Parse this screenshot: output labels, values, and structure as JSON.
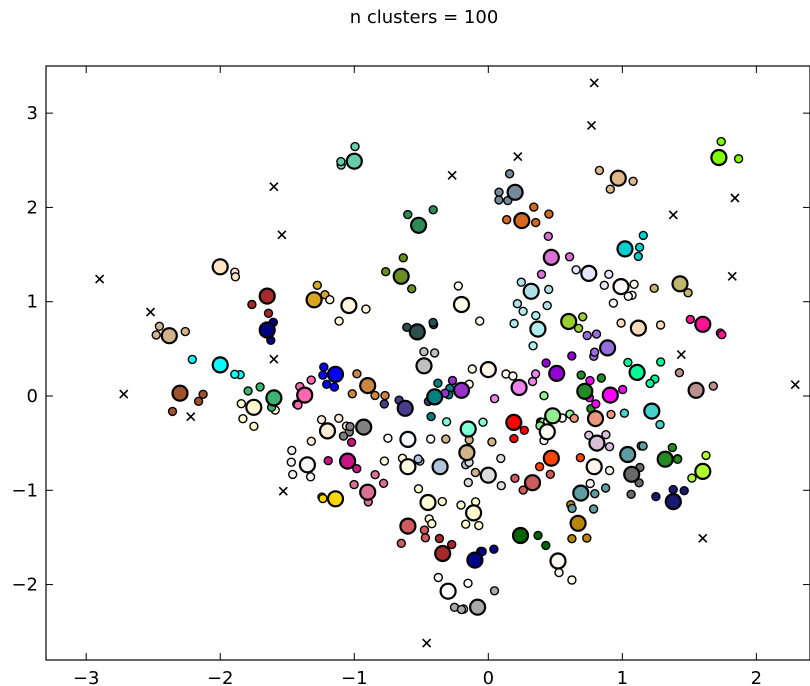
{
  "chart_data": {
    "type": "scatter",
    "title": "n clusters = 100",
    "xlabel": "",
    "ylabel": "",
    "xlim": [
      -3.3,
      2.4
    ],
    "ylim": [
      -2.8,
      3.5
    ],
    "xticks": [
      -3,
      -2,
      -1,
      0,
      1,
      2
    ],
    "yticks": [
      -2,
      -1,
      0,
      1,
      2,
      3
    ],
    "xtick_labels": [
      "−3",
      "−2",
      "−1",
      "0",
      "1",
      "2"
    ],
    "ytick_labels": [
      "−2",
      "−1",
      "0",
      "1",
      "2",
      "3"
    ],
    "grid": false,
    "legend": "none",
    "series": [
      {
        "role": "unclustered points (x markers)",
        "marker": "x",
        "color": "#000000",
        "points": [
          [
            -2.9,
            1.24
          ],
          [
            -2.52,
            0.89
          ],
          [
            -2.72,
            0.02
          ],
          [
            -2.22,
            -0.22
          ],
          [
            -1.6,
            2.22
          ],
          [
            -1.54,
            1.71
          ],
          [
            -1.6,
            0.39
          ],
          [
            -1.53,
            -1.01
          ],
          [
            -0.27,
            2.34
          ],
          [
            0.22,
            2.54
          ],
          [
            0.79,
            3.32
          ],
          [
            0.77,
            2.87
          ],
          [
            1.38,
            1.92
          ],
          [
            1.84,
            2.1
          ],
          [
            1.82,
            1.27
          ],
          [
            1.44,
            0.44
          ],
          [
            2.29,
            0.12
          ],
          [
            1.6,
            -1.51
          ],
          [
            -0.46,
            -2.62
          ]
        ]
      },
      {
        "role": "cluster centers",
        "marker": "large circle",
        "points": [
          {
            "x": -1.0,
            "y": 2.49,
            "color": "#66cdaa"
          },
          {
            "x": 0.2,
            "y": 2.16,
            "color": "#778899"
          },
          {
            "x": 0.25,
            "y": 1.86,
            "color": "#d2691e"
          },
          {
            "x": 0.97,
            "y": 2.31,
            "color": "#deb887"
          },
          {
            "x": 1.72,
            "y": 2.53,
            "color": "#7fff00"
          },
          {
            "x": -0.52,
            "y": 1.81,
            "color": "#2e8b57"
          },
          {
            "x": -2.0,
            "y": 1.37,
            "color": "#ffe4c4"
          },
          {
            "x": -1.65,
            "y": 1.06,
            "color": "#a52a2a"
          },
          {
            "x": -1.3,
            "y": 1.02,
            "color": "#daa520"
          },
          {
            "x": -1.04,
            "y": 0.96,
            "color": "#fff8dc"
          },
          {
            "x": -0.65,
            "y": 1.27,
            "color": "#6b8e23"
          },
          {
            "x": -0.2,
            "y": 0.97,
            "color": "#fffff0"
          },
          {
            "x": 0.32,
            "y": 1.11,
            "color": "#b0e0e6"
          },
          {
            "x": 0.47,
            "y": 1.47,
            "color": "#da70d6"
          },
          {
            "x": 0.75,
            "y": 1.3,
            "color": "#e6e6fa"
          },
          {
            "x": 1.02,
            "y": 1.56,
            "color": "#00ced1"
          },
          {
            "x": 0.99,
            "y": 1.16,
            "color": "#fffafa"
          },
          {
            "x": 1.43,
            "y": 1.19,
            "color": "#bdb76b"
          },
          {
            "x": -2.38,
            "y": 0.64,
            "color": "#d2b48c"
          },
          {
            "x": -1.65,
            "y": 0.7,
            "color": "#000080"
          },
          {
            "x": -0.53,
            "y": 0.68,
            "color": "#2f4f4f"
          },
          {
            "x": 0.37,
            "y": 0.71,
            "color": "#afeeee"
          },
          {
            "x": 0.6,
            "y": 0.79,
            "color": "#9acd32"
          },
          {
            "x": 1.12,
            "y": 0.72,
            "color": "#ffdab9"
          },
          {
            "x": 1.6,
            "y": 0.76,
            "color": "#ff1493"
          },
          {
            "x": -2.0,
            "y": 0.33,
            "color": "#00ffff"
          },
          {
            "x": -2.3,
            "y": 0.03,
            "color": "#a0522d"
          },
          {
            "x": -1.75,
            "y": -0.12,
            "color": "#fffacd"
          },
          {
            "x": -1.6,
            "y": -0.02,
            "color": "#3cb371"
          },
          {
            "x": -1.37,
            "y": 0.01,
            "color": "#ff69b4"
          },
          {
            "x": -1.14,
            "y": 0.23,
            "color": "#0000ff"
          },
          {
            "x": -0.9,
            "y": 0.11,
            "color": "#cd853f"
          },
          {
            "x": -0.48,
            "y": 0.32,
            "color": "#c0c0c0"
          },
          {
            "x": -0.62,
            "y": -0.13,
            "color": "#483d8b"
          },
          {
            "x": -0.4,
            "y": -0.01,
            "color": "#008080"
          },
          {
            "x": -0.2,
            "y": 0.06,
            "color": "#9932cc"
          },
          {
            "x": 0.0,
            "y": 0.28,
            "color": "#fdf5e6"
          },
          {
            "x": 0.23,
            "y": 0.09,
            "color": "#ee82ee"
          },
          {
            "x": 0.51,
            "y": 0.24,
            "color": "#9400d3"
          },
          {
            "x": 0.72,
            "y": 0.05,
            "color": "#228b22"
          },
          {
            "x": 0.89,
            "y": 0.51,
            "color": "#9370db"
          },
          {
            "x": 0.91,
            "y": 0.01,
            "color": "#ff00ff"
          },
          {
            "x": 1.11,
            "y": 0.25,
            "color": "#00fa9a"
          },
          {
            "x": 1.55,
            "y": 0.06,
            "color": "#bc8f8f"
          },
          {
            "x": -1.2,
            "y": -0.37,
            "color": "#faebd7"
          },
          {
            "x": -0.93,
            "y": -0.33,
            "color": "#808080"
          },
          {
            "x": -0.6,
            "y": -0.46,
            "color": "#f8f8ff"
          },
          {
            "x": -0.15,
            "y": -0.35,
            "color": "#7fffd4"
          },
          {
            "x": 0.19,
            "y": -0.28,
            "color": "#ff0000"
          },
          {
            "x": 0.48,
            "y": -0.21,
            "color": "#90ee90"
          },
          {
            "x": 0.44,
            "y": -0.38,
            "color": "#fffaf0"
          },
          {
            "x": 0.8,
            "y": -0.24,
            "color": "#e9967a"
          },
          {
            "x": 0.81,
            "y": -0.5,
            "color": "#d8bfd8"
          },
          {
            "x": 1.04,
            "y": -0.62,
            "color": "#5f9ea0"
          },
          {
            "x": 1.22,
            "y": -0.16,
            "color": "#48d1cc"
          },
          {
            "x": -1.35,
            "y": -0.73,
            "color": "#f5f5f5"
          },
          {
            "x": -1.05,
            "y": -0.69,
            "color": "#c71585"
          },
          {
            "x": -0.9,
            "y": -1.02,
            "color": "#db7093"
          },
          {
            "x": -0.6,
            "y": -0.75,
            "color": "#ffffe0"
          },
          {
            "x": -0.36,
            "y": -0.75,
            "color": "#b0c4de"
          },
          {
            "x": -0.16,
            "y": -0.6,
            "color": "#d2b48c"
          },
          {
            "x": 0.0,
            "y": -0.84,
            "color": "#dcdcdc"
          },
          {
            "x": 0.33,
            "y": -0.92,
            "color": "#cd5c5c"
          },
          {
            "x": 0.47,
            "y": -0.66,
            "color": "#ff4500"
          },
          {
            "x": 0.79,
            "y": -0.75,
            "color": "#fff5ee"
          },
          {
            "x": 1.07,
            "y": -0.83,
            "color": "#696969"
          },
          {
            "x": 1.32,
            "y": -0.67,
            "color": "#228b22"
          },
          {
            "x": 1.6,
            "y": -0.8,
            "color": "#adff2f"
          },
          {
            "x": -1.14,
            "y": -1.09,
            "color": "#ffd700"
          },
          {
            "x": -0.6,
            "y": -1.38,
            "color": "#cd5c5c"
          },
          {
            "x": -0.45,
            "y": -1.13,
            "color": "#fafad2"
          },
          {
            "x": -0.11,
            "y": -1.24,
            "color": "#fffacd"
          },
          {
            "x": 0.24,
            "y": -1.48,
            "color": "#006400"
          },
          {
            "x": 0.52,
            "y": -1.75,
            "color": "#fffaf0"
          },
          {
            "x": 0.67,
            "y": -1.35,
            "color": "#b8860b"
          },
          {
            "x": 0.69,
            "y": -1.03,
            "color": "#5f9ea0"
          },
          {
            "x": 1.38,
            "y": -1.12,
            "color": "#191970"
          },
          {
            "x": -0.34,
            "y": -1.67,
            "color": "#a52a2a"
          },
          {
            "x": -0.1,
            "y": -1.74,
            "color": "#00008b"
          },
          {
            "x": -0.3,
            "y": -2.07,
            "color": "#ffffff"
          },
          {
            "x": -0.08,
            "y": -2.24,
            "color": "#a9a9a9"
          }
        ]
      }
    ]
  }
}
